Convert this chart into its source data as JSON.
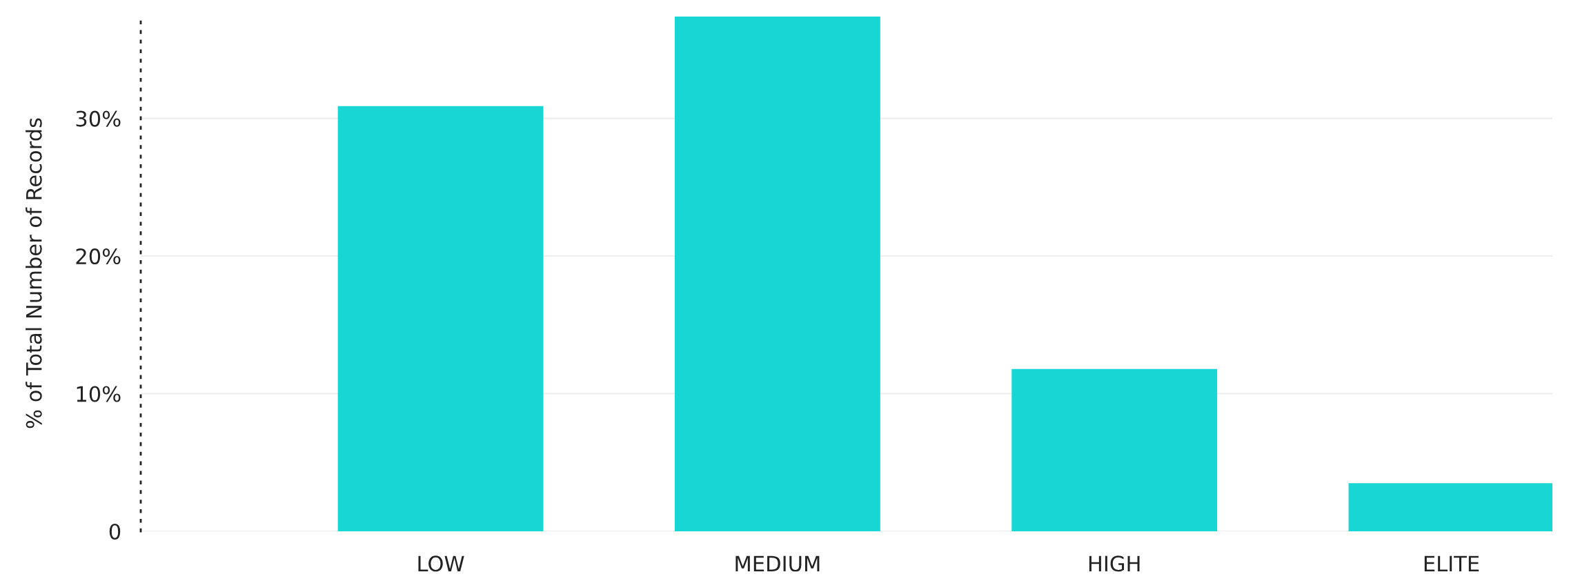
{
  "chart_data": {
    "type": "bar",
    "ylabel": "% of Total Number of Records",
    "categories": [
      "LOW",
      "MEDIUM",
      "HIGH",
      "ELITE"
    ],
    "values": [
      30.9,
      37.4,
      11.8,
      3.5
    ],
    "color": "#18d6d4",
    "ylim": [
      0,
      37.5
    ],
    "yticks": [
      {
        "value": 0,
        "label": "0"
      },
      {
        "value": 10,
        "label": "10%"
      },
      {
        "value": 20,
        "label": "20%"
      },
      {
        "value": 30,
        "label": "30%"
      }
    ],
    "grid": "y"
  }
}
